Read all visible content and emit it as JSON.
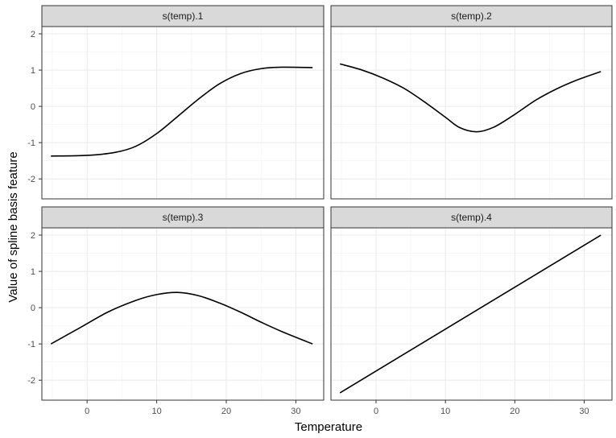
{
  "chart_data": {
    "type": "line",
    "xlabel": "Temperature",
    "ylabel": "Value of spline basis feature",
    "xlim": [
      -6.5,
      34
    ],
    "ylim": [
      -2.55,
      2.2
    ],
    "x_ticks": [
      0,
      10,
      20,
      30
    ],
    "y_ticks": [
      -2,
      -1,
      0,
      1,
      2
    ],
    "grid": true,
    "line_color": "#000000",
    "panels": [
      {
        "name": "s(temp).1",
        "x": [
          -5.2,
          0,
          4,
          7,
          10,
          13,
          16,
          19,
          22,
          25,
          28,
          32.4
        ],
        "y": [
          -1.37,
          -1.35,
          -1.27,
          -1.1,
          -0.75,
          -0.28,
          0.2,
          0.62,
          0.9,
          1.04,
          1.08,
          1.07
        ]
      },
      {
        "name": "s(temp).2",
        "x": [
          -5.2,
          -2,
          1,
          4,
          7,
          10,
          12,
          14.5,
          17,
          20,
          23,
          26,
          29,
          32.4
        ],
        "y": [
          1.17,
          1.0,
          0.78,
          0.5,
          0.12,
          -0.3,
          -0.58,
          -0.7,
          -0.57,
          -0.22,
          0.17,
          0.48,
          0.73,
          0.96
        ]
      },
      {
        "name": "s(temp).3",
        "x": [
          -5.2,
          -1,
          3,
          7,
          10,
          13,
          16,
          19,
          22,
          25,
          28,
          32.4
        ],
        "y": [
          -1.0,
          -0.55,
          -0.12,
          0.2,
          0.36,
          0.42,
          0.33,
          0.13,
          -0.12,
          -0.4,
          -0.66,
          -1.0
        ]
      },
      {
        "name": "s(temp).4",
        "x": [
          -5.2,
          32.4
        ],
        "y": [
          -2.35,
          2.0
        ]
      }
    ]
  }
}
